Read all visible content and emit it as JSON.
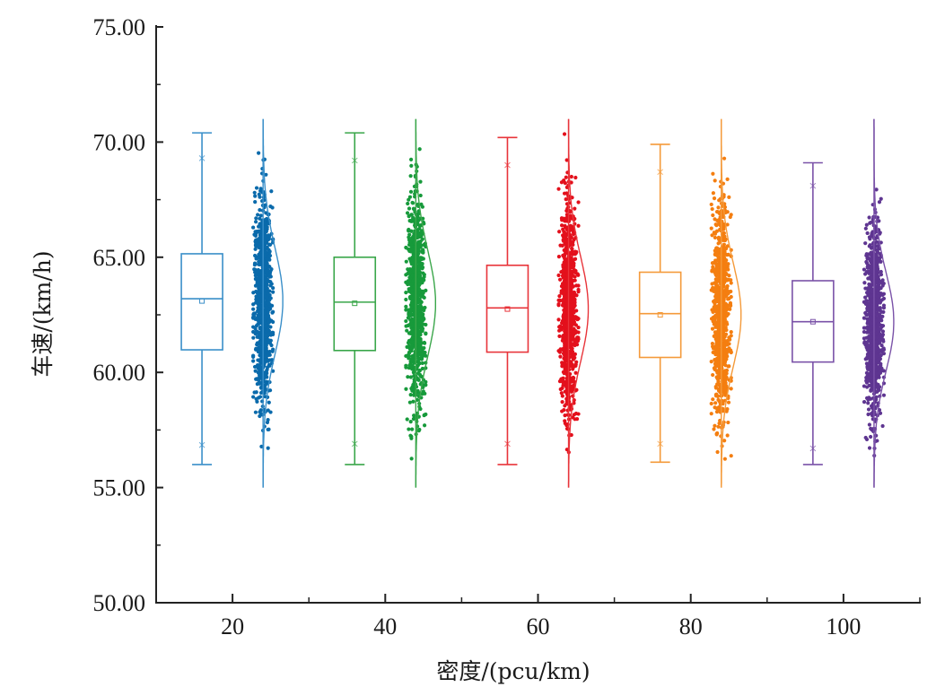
{
  "chart_data": {
    "type": "box",
    "title": "",
    "xlabel": "密度/(pcu/km)",
    "ylabel": "车速/(km/h)",
    "xlim": [
      10,
      110
    ],
    "ylim": [
      50,
      75
    ],
    "x_ticks": [
      "20",
      "40",
      "60",
      "80",
      "100"
    ],
    "y_ticks": [
      "50.00",
      "55.00",
      "60.00",
      "65.00",
      "70.00",
      "75.00"
    ],
    "grid": false,
    "legend": "none",
    "groups": [
      {
        "density": 20,
        "color": "#3a8fc9",
        "point_color": "#0a6aab",
        "whisker_max": 70.4,
        "q3": 65.15,
        "median": 63.2,
        "mean": 63.1,
        "q1": 60.98,
        "whisker_min": 56.0,
        "outliers_x": [
          69.3,
          56.85
        ],
        "points_sd_approx": 2.3,
        "points_range_approx": [
          56.0,
          70.4
        ]
      },
      {
        "density": 40,
        "color": "#3aa64a",
        "point_color": "#179a3b",
        "whisker_max": 70.4,
        "q3": 65.0,
        "median": 63.05,
        "mean": 63.0,
        "q1": 60.95,
        "whisker_min": 56.0,
        "outliers_x": [
          69.2,
          56.9
        ],
        "points_sd_approx": 2.3,
        "points_range_approx": [
          56.0,
          70.4
        ]
      },
      {
        "density": 60,
        "color": "#e8343a",
        "point_color": "#e3101c",
        "whisker_max": 70.2,
        "q3": 64.65,
        "median": 62.8,
        "mean": 62.75,
        "q1": 60.88,
        "whisker_min": 56.0,
        "outliers_x": [
          69.0,
          56.9
        ],
        "points_sd_approx": 2.3,
        "points_range_approx": [
          56.0,
          70.4
        ]
      },
      {
        "density": 80,
        "color": "#f49a3a",
        "point_color": "#f47e10",
        "whisker_max": 69.9,
        "q3": 64.35,
        "median": 62.55,
        "mean": 62.5,
        "q1": 60.65,
        "whisker_min": 56.1,
        "outliers_x": [
          68.7,
          56.9
        ],
        "points_sd_approx": 2.25,
        "points_range_approx": [
          56.0,
          70.0
        ]
      },
      {
        "density": 100,
        "color": "#7a52a8",
        "point_color": "#5e3591",
        "whisker_max": 69.1,
        "q3": 63.98,
        "median": 62.2,
        "mean": 62.2,
        "q1": 60.45,
        "whisker_min": 56.0,
        "outliers_x": [
          68.1,
          56.7
        ],
        "points_sd_approx": 2.15,
        "points_range_approx": [
          56.0,
          69.1
        ]
      }
    ],
    "points_per_group_approx": 900,
    "curve_range_approx": [
      55,
      71
    ]
  }
}
